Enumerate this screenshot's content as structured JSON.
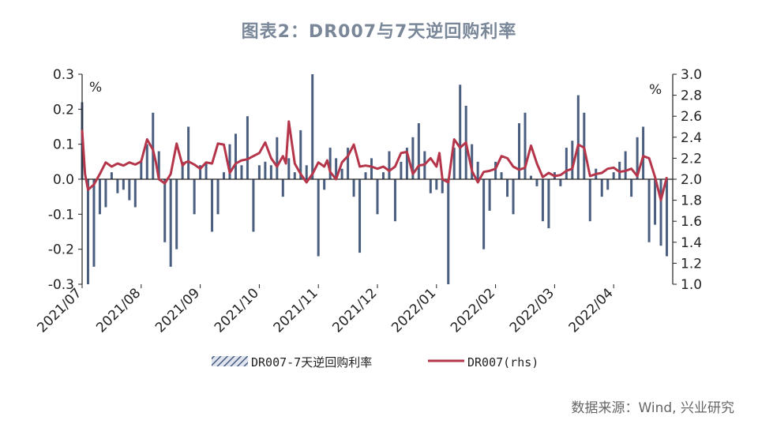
{
  "title": "图表2：DR007与7天逆回购利率",
  "source": "数据来源：Wind, 兴业研究",
  "colors": {
    "bar": "#4a5e80",
    "line": "#b5364a",
    "axis": "#222222",
    "title": "#7a8799"
  },
  "chart_data": {
    "type": "bar+line",
    "left_axis": {
      "unit": "%",
      "ylim": [
        -0.3,
        0.3
      ],
      "ticks": [
        "0.3",
        "0.2",
        "0.1",
        "0.0",
        "-0.1",
        "-0.2",
        "-0.3"
      ]
    },
    "right_axis": {
      "unit": "%",
      "ylim": [
        1.0,
        3.0
      ],
      "ticks": [
        "3.0",
        "2.8",
        "2.6",
        "2.4",
        "2.2",
        "2.0",
        "1.8",
        "1.6",
        "1.4",
        "1.2",
        "1.0"
      ]
    },
    "categories": [
      "2021/07",
      "2021/08",
      "2021/09",
      "2021/10",
      "2021/11",
      "2021/12",
      "2022/01",
      "2022/02",
      "2022/03",
      "2022/04"
    ],
    "series": [
      {
        "name": "DR007-7天逆回购利率",
        "type": "bar",
        "axis": "left",
        "x": [
          0.0,
          0.1,
          0.2,
          0.3,
          0.4,
          0.5,
          0.6,
          0.7,
          0.8,
          0.9,
          1.0,
          1.1,
          1.2,
          1.3,
          1.4,
          1.5,
          1.6,
          1.7,
          1.8,
          1.9,
          2.0,
          2.1,
          2.2,
          2.3,
          2.4,
          2.5,
          2.6,
          2.7,
          2.8,
          2.9,
          3.0,
          3.1,
          3.2,
          3.3,
          3.4,
          3.5,
          3.6,
          3.7,
          3.8,
          3.9,
          4.0,
          4.1,
          4.2,
          4.3,
          4.4,
          4.5,
          4.6,
          4.7,
          4.8,
          4.9,
          5.0,
          5.1,
          5.2,
          5.3,
          5.4,
          5.5,
          5.6,
          5.7,
          5.8,
          5.9,
          6.0,
          6.1,
          6.2,
          6.3,
          6.4,
          6.5,
          6.6,
          6.7,
          6.8,
          6.9,
          7.0,
          7.1,
          7.2,
          7.3,
          7.4,
          7.5,
          7.6,
          7.7,
          7.8,
          7.9,
          8.0,
          8.1,
          8.2,
          8.3,
          8.4,
          8.5,
          8.6,
          8.7,
          8.8,
          8.9,
          9.0,
          9.1,
          9.2,
          9.3,
          9.4,
          9.5,
          9.6,
          9.7,
          9.8,
          9.9
        ],
        "values": [
          0.22,
          -0.3,
          -0.25,
          -0.1,
          -0.08,
          0.02,
          -0.04,
          -0.03,
          -0.06,
          -0.08,
          0.05,
          0.1,
          0.19,
          0.08,
          -0.18,
          -0.25,
          -0.2,
          0.05,
          0.15,
          -0.1,
          0.04,
          0.05,
          -0.15,
          -0.1,
          0.02,
          0.1,
          0.13,
          0.04,
          0.18,
          -0.15,
          0.04,
          0.05,
          0.04,
          0.12,
          -0.05,
          0.06,
          0.02,
          0.14,
          0.04,
          0.3,
          -0.22,
          -0.03,
          0.09,
          0.06,
          0.03,
          0.09,
          -0.05,
          -0.21,
          0.02,
          0.06,
          -0.1,
          0.02,
          0.08,
          -0.12,
          0.05,
          0.09,
          0.12,
          0.16,
          0.08,
          -0.04,
          -0.03,
          -0.04,
          -0.3,
          0.09,
          0.27,
          0.21,
          0.1,
          0.05,
          -0.2,
          -0.09,
          0.05,
          0.02,
          -0.05,
          -0.1,
          0.16,
          0.19,
          0.01,
          -0.02,
          -0.12,
          -0.14,
          0.02,
          -0.02,
          0.09,
          0.11,
          0.24,
          0.19,
          -0.12,
          0.03,
          -0.05,
          -0.03,
          0.02,
          0.05,
          0.08,
          -0.05,
          0.12,
          0.15,
          -0.18,
          -0.13,
          -0.19,
          -0.22
        ]
      },
      {
        "name": "DR007(rhs)",
        "type": "line",
        "axis": "right",
        "x": [
          0.0,
          0.05,
          0.1,
          0.2,
          0.3,
          0.4,
          0.5,
          0.6,
          0.7,
          0.8,
          0.9,
          1.0,
          1.1,
          1.2,
          1.25,
          1.3,
          1.4,
          1.5,
          1.6,
          1.7,
          1.75,
          1.8,
          1.9,
          2.0,
          2.1,
          2.2,
          2.3,
          2.4,
          2.5,
          2.6,
          2.7,
          2.8,
          2.9,
          3.0,
          3.1,
          3.2,
          3.3,
          3.4,
          3.45,
          3.5,
          3.6,
          3.7,
          3.8,
          3.9,
          4.0,
          4.1,
          4.15,
          4.2,
          4.3,
          4.4,
          4.5,
          4.6,
          4.7,
          4.8,
          4.9,
          5.0,
          5.1,
          5.2,
          5.3,
          5.4,
          5.5,
          5.6,
          5.7,
          5.8,
          5.9,
          6.0,
          6.05,
          6.1,
          6.2,
          6.3,
          6.4,
          6.5,
          6.6,
          6.7,
          6.8,
          6.9,
          7.0,
          7.1,
          7.2,
          7.3,
          7.4,
          7.5,
          7.6,
          7.7,
          7.8,
          7.9,
          8.0,
          8.1,
          8.2,
          8.3,
          8.4,
          8.5,
          8.6,
          8.7,
          8.8,
          8.9,
          9.0,
          9.1,
          9.2,
          9.3,
          9.4,
          9.5,
          9.6,
          9.7,
          9.8,
          9.9
        ],
        "values": [
          2.47,
          2.05,
          1.9,
          1.95,
          2.05,
          2.16,
          2.12,
          2.15,
          2.13,
          2.16,
          2.14,
          2.17,
          2.38,
          2.28,
          2.16,
          2.0,
          1.96,
          2.05,
          2.34,
          2.13,
          2.16,
          2.17,
          2.14,
          2.1,
          2.16,
          2.15,
          2.34,
          2.33,
          2.06,
          2.15,
          2.18,
          2.19,
          2.22,
          2.25,
          2.35,
          2.2,
          2.12,
          2.22,
          2.15,
          2.55,
          2.15,
          2.05,
          1.97,
          2.05,
          2.16,
          2.12,
          2.18,
          2.07,
          2.0,
          2.16,
          2.22,
          2.33,
          2.12,
          2.13,
          2.12,
          2.1,
          2.12,
          2.08,
          2.12,
          2.25,
          2.26,
          2.05,
          2.13,
          2.14,
          2.2,
          2.12,
          2.25,
          2.0,
          1.97,
          2.38,
          2.3,
          2.35,
          2.08,
          1.97,
          2.07,
          2.08,
          2.1,
          2.22,
          2.2,
          2.12,
          2.09,
          2.11,
          2.32,
          2.15,
          2.02,
          2.06,
          2.03,
          2.04,
          2.08,
          2.1,
          2.33,
          2.3,
          2.03,
          2.05,
          2.06,
          2.1,
          2.11,
          2.07,
          2.08,
          2.1,
          2.03,
          2.22,
          2.2,
          2.02,
          1.8,
          2.02
        ]
      }
    ]
  },
  "legend": {
    "items": [
      "DR007-7天逆回购利率",
      "DR007(rhs)"
    ]
  }
}
